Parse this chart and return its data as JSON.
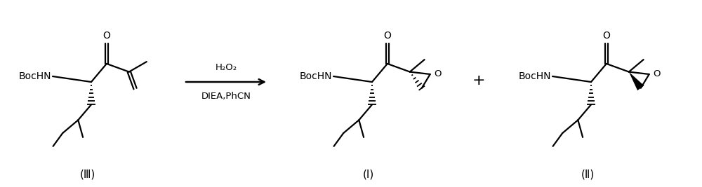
{
  "bg_color": "#ffffff",
  "line_color": "#000000",
  "figure_width": 10.0,
  "figure_height": 2.67,
  "dpi": 100,
  "label_III": "(Ⅲ)",
  "label_I": "(Ⅰ)",
  "label_II": "(Ⅱ)",
  "reagent_top": "H₂O₂",
  "reagent_bottom": "DIEA,PhCN",
  "plus_sign": "+",
  "BocHN": "BocHN"
}
